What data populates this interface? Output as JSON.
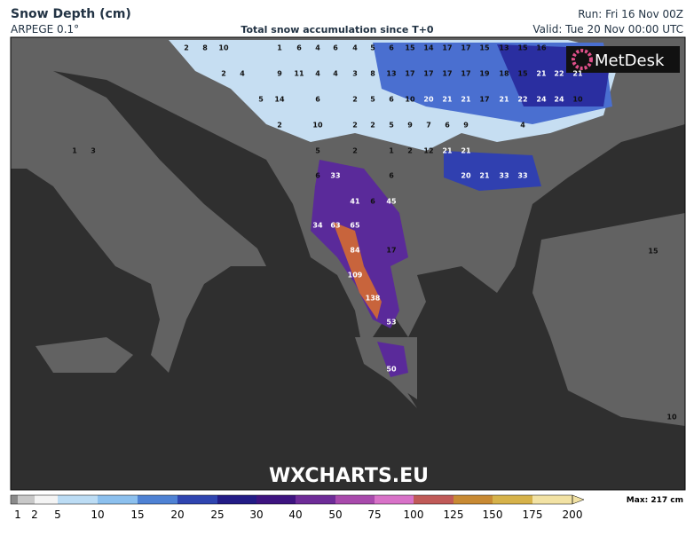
{
  "header": {
    "title": "Snow Depth (cm)",
    "model": "ARPEGE 0.1°",
    "subtitle": "Total snow accumulation since T+0",
    "run": "Run: Fri 16 Nov 00Z",
    "valid": "Valid: Tue 20 Nov 00:00 UTC"
  },
  "logo": "MetDesk",
  "watermark": "WXCHARTS.EU",
  "legend": {
    "ticks": [
      1,
      2,
      5,
      10,
      15,
      20,
      25,
      30,
      40,
      50,
      75,
      100,
      125,
      150,
      175,
      200
    ],
    "colors": [
      "#c8c8c8",
      "#f4f4f4",
      "#bcdcf4",
      "#8cc0ee",
      "#4f82d4",
      "#2f45b0",
      "#231c86",
      "#3e1480",
      "#6e2c98",
      "#a84aac",
      "#d872c8",
      "#c05a58",
      "#c88a34",
      "#d6b24a",
      "#f2e2a4"
    ],
    "max": "Max: 217 cm"
  },
  "map_labels": [
    2,
    8,
    10,
    1,
    6,
    4,
    6,
    4,
    5,
    6,
    15,
    14,
    17,
    17,
    15,
    13,
    15,
    16,
    2,
    4,
    9,
    11,
    4,
    4,
    3,
    8,
    13,
    17,
    17,
    17,
    17,
    19,
    18,
    15,
    21,
    22,
    21,
    5,
    14,
    6,
    2,
    5,
    6,
    10,
    20,
    21,
    21,
    17,
    21,
    22,
    24,
    24,
    10,
    2,
    10,
    2,
    2,
    5,
    9,
    7,
    6,
    9,
    4,
    5,
    2,
    1,
    2,
    12,
    21,
    21,
    6,
    33,
    6,
    20,
    21,
    33,
    33,
    41,
    6,
    45,
    34,
    63,
    65,
    84,
    17,
    109,
    138,
    53,
    50,
    1,
    3,
    15,
    10
  ]
}
